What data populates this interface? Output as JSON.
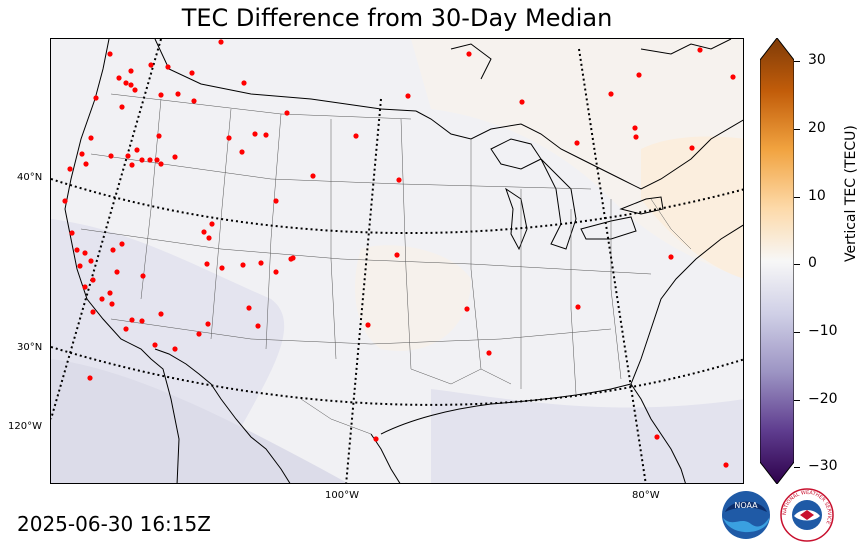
{
  "title": "TEC Difference from 30-Day Median",
  "timestamp": "2025-06-30 16:15Z",
  "map": {
    "lat_labels": [
      "40°N",
      "30°N",
      "120°W"
    ],
    "lon_labels": [
      "100°W",
      "80°W"
    ],
    "station_marker_color": "#ff0000"
  },
  "colorbar": {
    "label": "Vertical TEC (TECU)",
    "ticks": [
      "30",
      "20",
      "10",
      "0",
      "−10",
      "−20",
      "−30"
    ],
    "range": [
      -30,
      30
    ],
    "colormap": "purple-to-orange diverging",
    "top_color": "#7f3b08",
    "bottom_color": "#2d004b"
  },
  "logos": {
    "noaa": "NOAA",
    "nws": "NATIONAL WEATHER SERVICE"
  }
}
